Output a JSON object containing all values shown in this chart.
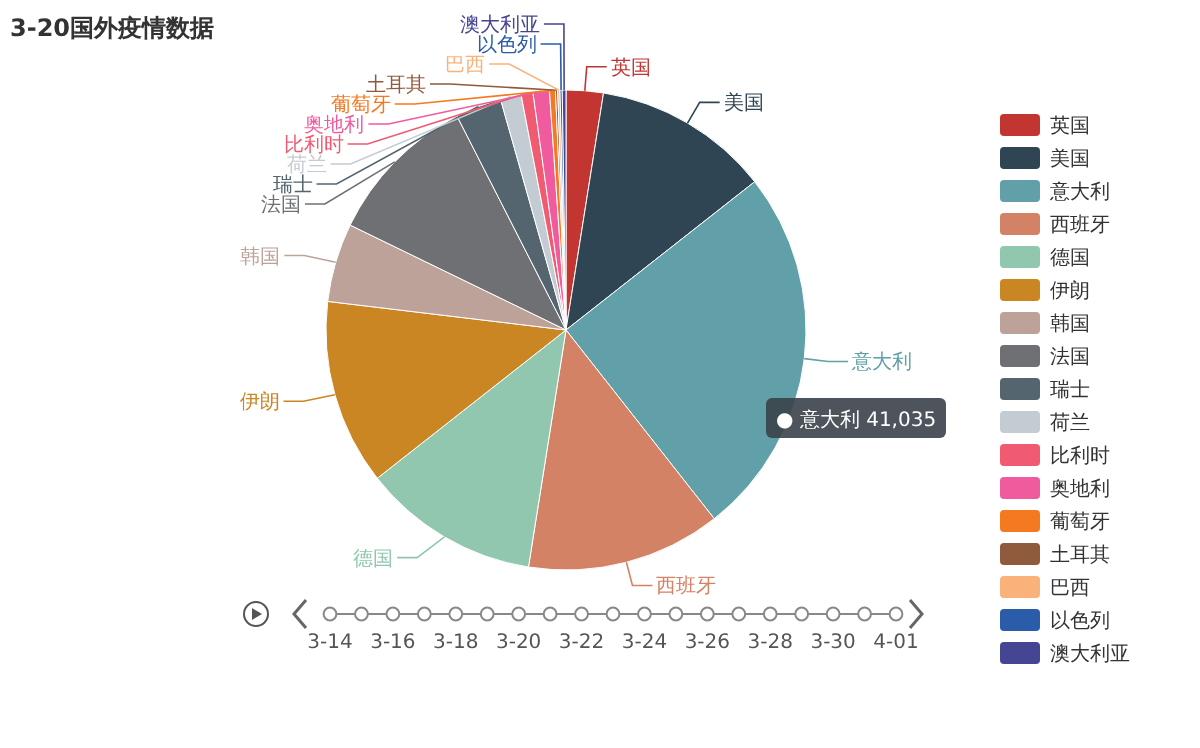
{
  "chart_data": {
    "type": "pie",
    "title": "3-20国外疫情数据",
    "categories": [
      "英国",
      "美国",
      "意大利",
      "西班牙",
      "德国",
      "伊朗",
      "韩国",
      "法国",
      "瑞士",
      "荷兰",
      "比利时",
      "奥地利",
      "葡萄牙",
      "土耳其",
      "巴西",
      "以色列",
      "澳大利亚"
    ],
    "values": [
      2.5,
      11.9,
      25,
      13.1,
      11.9,
      12.5,
      5.3,
      10.3,
      3.1,
      1.4,
      0.8,
      1.1,
      0.4,
      0.15,
      0.15,
      0.15,
      0.25
    ],
    "colors": [
      "#c23531",
      "#2f4554",
      "#61a0a8",
      "#d48265",
      "#91c7ae",
      "#ca8622",
      "#bda29a",
      "#6e7074",
      "#546570",
      "#c4ccd3",
      "#f05b72",
      "#ef5b9c",
      "#f47920",
      "#905a3d",
      "#fab27b",
      "#2a5caa",
      "#444693"
    ],
    "legend": "right",
    "annotations": [
      "● 意大利 41,035",
      "3-14",
      "3-16",
      "3-18",
      "3-20",
      "3-22",
      "3-24",
      "3-26",
      "3-28",
      "3-30",
      "4-01"
    ]
  }
}
